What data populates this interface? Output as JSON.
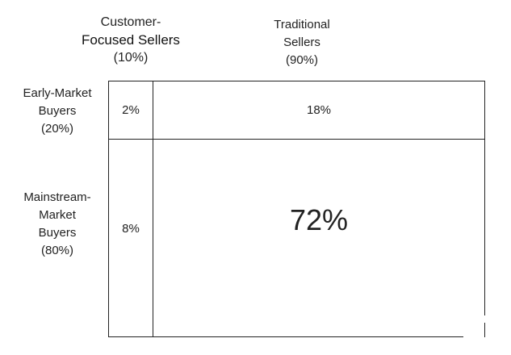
{
  "columns": [
    {
      "lines": [
        "Customer-",
        "Focused Sellers",
        "(10%)"
      ]
    },
    {
      "lines": [
        "Traditional",
        "Sellers",
        "(90%)"
      ]
    }
  ],
  "rows": [
    {
      "lines": [
        "Early-Market",
        "Buyers",
        "(20%)"
      ]
    },
    {
      "lines": [
        "Mainstream-",
        "Market",
        "Buyers",
        "(80%)"
      ]
    }
  ],
  "cells": {
    "top_left": "2%",
    "top_right": "18%",
    "bottom_left": "8%",
    "bottom_right": "72%"
  }
}
